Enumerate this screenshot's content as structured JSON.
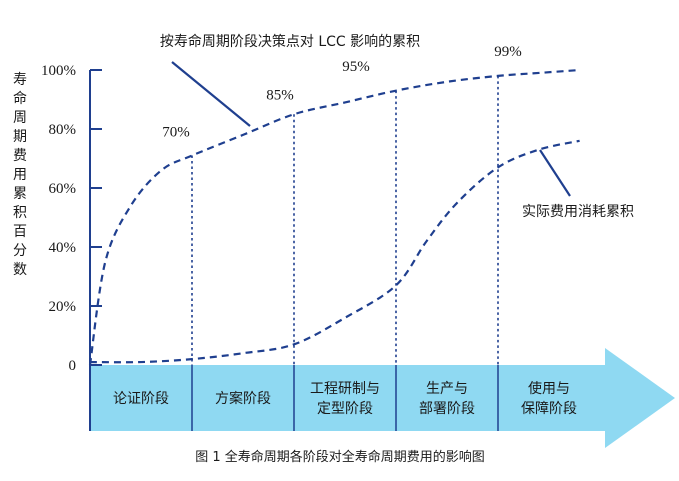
{
  "chart_data": {
    "type": "line",
    "title": "按寿命周期阶段决策点对 LCC 影响的累积",
    "caption": "图 1  全寿命周期各阶段对全寿命周期费用的影响图",
    "ylabel": "寿命周期费用累积百分数",
    "ylim": [
      0,
      100
    ],
    "y_ticks": [
      "0",
      "20%",
      "40%",
      "60%",
      "80%",
      "100%"
    ],
    "y_tick_values": [
      0,
      20,
      40,
      60,
      80,
      100
    ],
    "stages": [
      "论证阶段",
      "方案阶段",
      "工程研制与\n定型阶段",
      "生产与\n部署阶段",
      "使用与\n保障阶段"
    ],
    "milestone_labels": [
      "70%",
      "85%",
      "95%",
      "99%"
    ],
    "milestone_values": [
      70,
      85,
      95,
      99
    ],
    "series": [
      {
        "label": "按寿命周期阶段决策点对 LCC 影响的累积",
        "x": [
          0,
          0.15,
          0.4,
          0.7,
          1.0,
          1.5,
          2.0,
          2.5,
          3.0,
          3.5,
          4.0,
          4.4,
          4.8
        ],
        "values": [
          0,
          35,
          54,
          66,
          71,
          78,
          85,
          89,
          93,
          96,
          98,
          99,
          100
        ]
      },
      {
        "label": "实际费用消耗累积",
        "x": [
          0,
          0.5,
          1.0,
          1.5,
          2.0,
          2.5,
          3.0,
          3.3,
          3.6,
          4.0,
          4.4,
          4.8
        ],
        "values": [
          1,
          1,
          2,
          4,
          7,
          16,
          27,
          42,
          55,
          67,
          73,
          76
        ]
      }
    ],
    "series_labels_printed": [
      "按寿命周期阶段决策点对 LCC 影响的累积",
      "实际费用消耗累积"
    ],
    "line_color": "#1f3f8f",
    "arrow_color": "#8fd9f2",
    "axis_color": "#1f3f8f",
    "stage_text_color": "#1a1a1a"
  }
}
